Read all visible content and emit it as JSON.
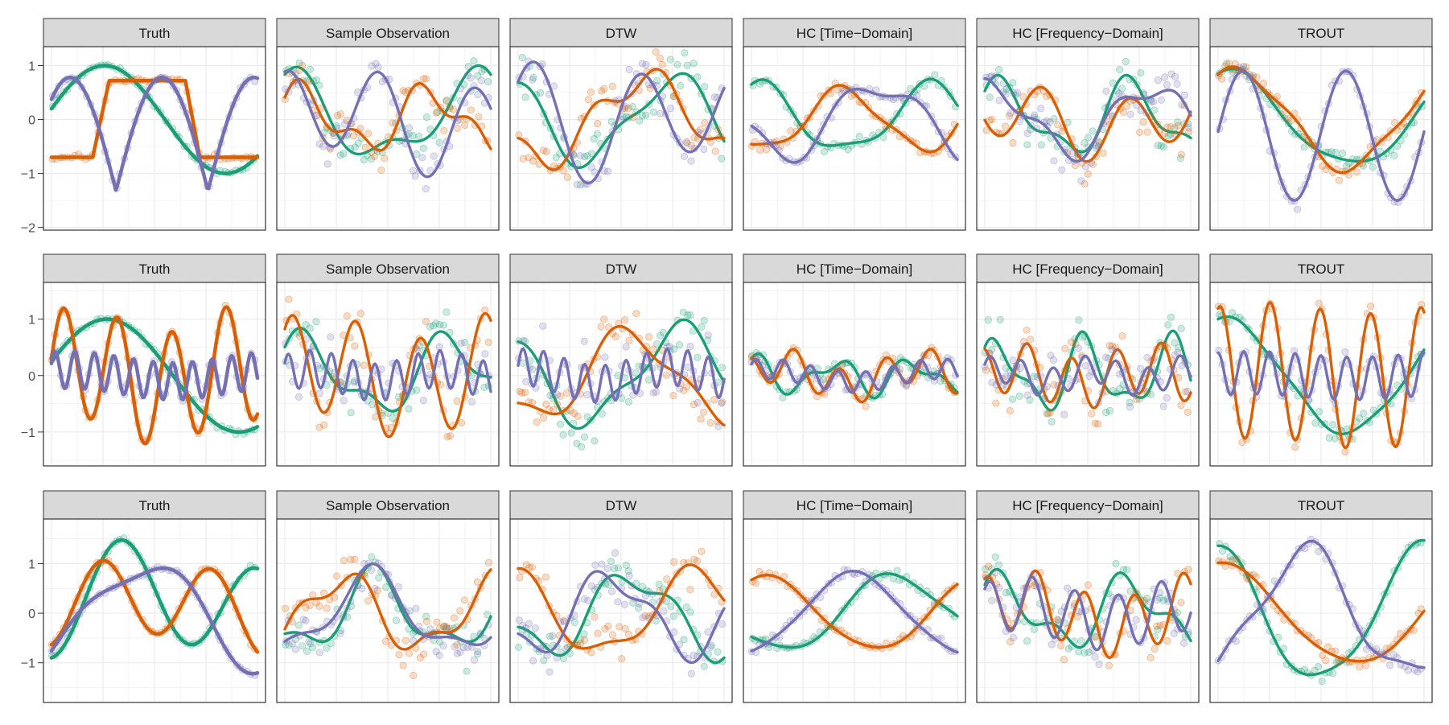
{
  "colors": {
    "series_green": "#1b9e77",
    "series_orange": "#d95f02",
    "series_purple": "#7570b3",
    "strip_bg": "#d9d9d9",
    "grid": "#ebebeb",
    "panel_border": "#333333",
    "tick_text": "#4d4d4d"
  },
  "chart_data": {
    "type": "line",
    "layout": "facet-grid 3 rows x 6 columns",
    "columns": [
      "Truth",
      "Sample Observation",
      "DTW",
      "HC [Time−Domain]",
      "HC [Frequency−Domain]",
      "TROUT"
    ],
    "x_range": [
      0,
      1
    ],
    "grid": true,
    "legend": "none",
    "rows": [
      {
        "ylim": [
          -2.05,
          1.35
        ],
        "yticks": [
          1,
          0,
          -1,
          -2
        ],
        "ytick_labels": [
          "1",
          "0",
          "−1",
          "−2"
        ]
      },
      {
        "ylim": [
          -1.6,
          1.65
        ],
        "yticks": [
          1,
          0,
          -1
        ],
        "ytick_labels": [
          "1",
          "0",
          "−1"
        ]
      },
      {
        "ylim": [
          -1.8,
          1.9
        ],
        "yticks": [
          1,
          0,
          -1
        ],
        "ytick_labels": [
          "1",
          "0",
          "−1"
        ]
      }
    ],
    "series_colors": [
      "#1b9e77",
      "#d95f02",
      "#7570b3"
    ]
  }
}
